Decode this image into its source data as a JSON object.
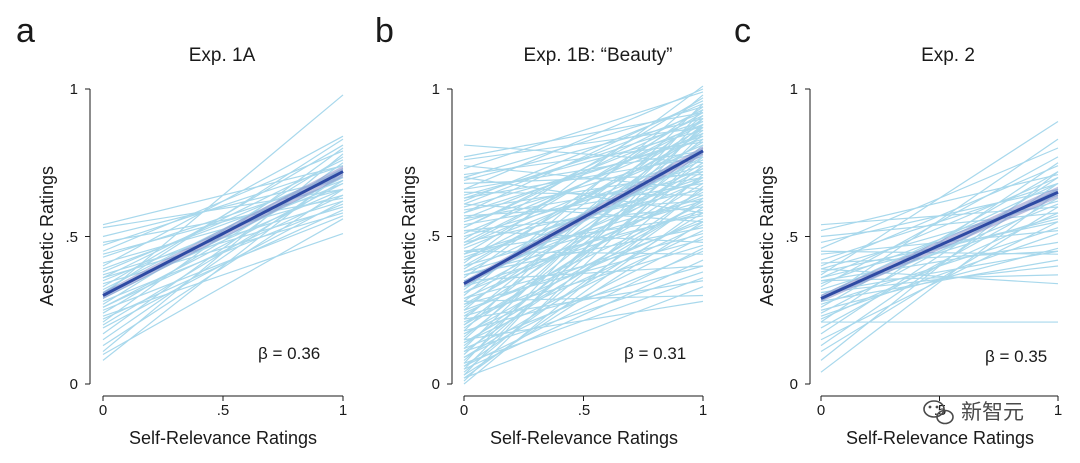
{
  "chart_data": [
    {
      "type": "line",
      "letter": "a",
      "title": "Exp. 1A",
      "xlabel": "Self-Relevance Ratings",
      "ylabel": "Aesthetic Ratings",
      "xlim": [
        0,
        1
      ],
      "ylim": [
        0,
        1
      ],
      "xticks": [
        0,
        0.5,
        1
      ],
      "xtick_labels": [
        "0",
        ".5",
        "1"
      ],
      "yticks": [
        0,
        0.5,
        1
      ],
      "ytick_labels": [
        "0",
        ".5",
        "1"
      ],
      "annotation": "β = 0.36",
      "fit": {
        "intercept": 0.3,
        "slope": 0.42,
        "ci": 0.012
      },
      "individual_lines": [
        [
          0.53,
          0.66
        ],
        [
          0.54,
          0.74
        ],
        [
          0.5,
          0.7
        ],
        [
          0.47,
          0.74
        ],
        [
          0.45,
          0.79
        ],
        [
          0.43,
          0.7
        ],
        [
          0.41,
          0.64
        ],
        [
          0.4,
          0.84
        ],
        [
          0.38,
          0.72
        ],
        [
          0.37,
          0.62
        ],
        [
          0.36,
          0.76
        ],
        [
          0.35,
          0.68
        ],
        [
          0.34,
          0.58
        ],
        [
          0.33,
          0.81
        ],
        [
          0.32,
          0.73
        ],
        [
          0.31,
          0.66
        ],
        [
          0.3,
          0.98
        ],
        [
          0.29,
          0.7
        ],
        [
          0.28,
          0.61
        ],
        [
          0.27,
          0.77
        ],
        [
          0.26,
          0.68
        ],
        [
          0.25,
          0.57
        ],
        [
          0.24,
          0.73
        ],
        [
          0.23,
          0.51
        ],
        [
          0.21,
          0.8
        ],
        [
          0.2,
          0.69
        ],
        [
          0.19,
          0.62
        ],
        [
          0.17,
          0.75
        ],
        [
          0.15,
          0.71
        ],
        [
          0.13,
          0.66
        ],
        [
          0.11,
          0.78
        ],
        [
          0.1,
          0.56
        ],
        [
          0.08,
          0.72
        ],
        [
          0.36,
          0.6
        ],
        [
          0.44,
          0.66
        ],
        [
          0.31,
          0.83
        ],
        [
          0.26,
          0.64
        ],
        [
          0.22,
          0.59
        ],
        [
          0.48,
          0.63
        ],
        [
          0.39,
          0.69
        ]
      ]
    },
    {
      "type": "line",
      "letter": "b",
      "title": "Exp. 1B: “Beauty”",
      "xlabel": "Self-Relevance Ratings",
      "ylabel": "Aesthetic Ratings",
      "xlim": [
        0,
        1
      ],
      "ylim": [
        0,
        1
      ],
      "xticks": [
        0,
        0.5,
        1
      ],
      "xtick_labels": [
        "0",
        ".5",
        "1"
      ],
      "yticks": [
        0,
        0.5,
        1
      ],
      "ytick_labels": [
        "0",
        ".5",
        "1"
      ],
      "annotation": "β = 0.31",
      "fit": {
        "intercept": 0.34,
        "slope": 0.45,
        "ci": 0.01
      },
      "individual_lines": [
        [
          0.81,
          0.75
        ],
        [
          0.77,
          0.92
        ],
        [
          0.74,
          0.66
        ],
        [
          0.73,
          0.99
        ],
        [
          0.71,
          0.82
        ],
        [
          0.7,
          0.58
        ],
        [
          0.69,
          0.9
        ],
        [
          0.68,
          0.71
        ],
        [
          0.66,
          1.0
        ],
        [
          0.65,
          0.64
        ],
        [
          0.64,
          0.86
        ],
        [
          0.63,
          0.77
        ],
        [
          0.62,
          0.95
        ],
        [
          0.61,
          0.55
        ],
        [
          0.6,
          0.83
        ],
        [
          0.59,
          0.72
        ],
        [
          0.58,
          0.96
        ],
        [
          0.57,
          0.62
        ],
        [
          0.56,
          0.88
        ],
        [
          0.55,
          0.79
        ],
        [
          0.54,
          0.68
        ],
        [
          0.53,
          0.93
        ],
        [
          0.52,
          0.6
        ],
        [
          0.51,
          0.85
        ],
        [
          0.5,
          0.74
        ],
        [
          0.49,
          0.97
        ],
        [
          0.48,
          0.66
        ],
        [
          0.47,
          0.89
        ],
        [
          0.46,
          0.78
        ],
        [
          0.45,
          0.57
        ],
        [
          0.44,
          0.92
        ],
        [
          0.43,
          0.7
        ],
        [
          0.42,
          0.84
        ],
        [
          0.41,
          1.01
        ],
        [
          0.4,
          0.63
        ],
        [
          0.39,
          0.87
        ],
        [
          0.38,
          0.76
        ],
        [
          0.37,
          0.53
        ],
        [
          0.36,
          0.94
        ],
        [
          0.35,
          0.69
        ],
        [
          0.34,
          0.82
        ],
        [
          0.33,
          0.59
        ],
        [
          0.32,
          0.9
        ],
        [
          0.31,
          0.73
        ],
        [
          0.3,
          0.98
        ],
        [
          0.29,
          0.65
        ],
        [
          0.28,
          0.86
        ],
        [
          0.27,
          0.49
        ],
        [
          0.26,
          0.8
        ],
        [
          0.25,
          0.91
        ],
        [
          0.24,
          0.61
        ],
        [
          0.23,
          0.75
        ],
        [
          0.22,
          0.88
        ],
        [
          0.21,
          0.56
        ],
        [
          0.2,
          0.83
        ],
        [
          0.19,
          0.7
        ],
        [
          0.18,
          0.95
        ],
        [
          0.17,
          0.62
        ],
        [
          0.16,
          0.79
        ],
        [
          0.15,
          0.87
        ],
        [
          0.14,
          0.52
        ],
        [
          0.13,
          0.74
        ],
        [
          0.12,
          0.9
        ],
        [
          0.11,
          0.66
        ],
        [
          0.1,
          0.81
        ],
        [
          0.09,
          0.58
        ],
        [
          0.08,
          0.77
        ],
        [
          0.07,
          0.93
        ],
        [
          0.06,
          0.63
        ],
        [
          0.05,
          0.85
        ],
        [
          0.04,
          0.71
        ],
        [
          0.03,
          0.88
        ],
        [
          0.02,
          0.6
        ],
        [
          0.01,
          0.79
        ],
        [
          0.0,
          0.67
        ],
        [
          0.35,
          0.4
        ],
        [
          0.28,
          0.3
        ],
        [
          0.45,
          0.44
        ],
        [
          0.22,
          0.35
        ],
        [
          0.15,
          0.28
        ],
        [
          0.52,
          0.48
        ],
        [
          0.18,
          0.4
        ],
        [
          0.38,
          0.62
        ],
        [
          0.42,
          0.73
        ],
        [
          0.25,
          0.55
        ],
        [
          0.31,
          0.64
        ],
        [
          0.47,
          0.81
        ],
        [
          0.56,
          0.7
        ],
        [
          0.61,
          0.92
        ],
        [
          0.66,
          0.79
        ],
        [
          0.12,
          0.45
        ],
        [
          0.09,
          0.5
        ],
        [
          0.05,
          0.42
        ],
        [
          0.03,
          0.55
        ],
        [
          0.07,
          0.36
        ],
        [
          0.14,
          0.62
        ],
        [
          0.2,
          0.68
        ],
        [
          0.27,
          0.72
        ],
        [
          0.33,
          0.77
        ],
        [
          0.4,
          0.85
        ],
        [
          0.48,
          0.88
        ],
        [
          0.53,
          0.91
        ],
        [
          0.58,
          0.84
        ],
        [
          0.63,
          0.89
        ],
        [
          0.7,
          0.94
        ],
        [
          0.76,
          0.87
        ],
        [
          0.44,
          0.69
        ],
        [
          0.37,
          0.58
        ],
        [
          0.29,
          0.51
        ],
        [
          0.23,
          0.47
        ],
        [
          0.17,
          0.54
        ],
        [
          0.11,
          0.38
        ],
        [
          0.06,
          0.46
        ],
        [
          0.02,
          0.33
        ]
      ]
    },
    {
      "type": "line",
      "letter": "c",
      "title": "Exp. 2",
      "xlabel": "Self-Relevance Ratings",
      "ylabel": "Aesthetic Ratings",
      "xlim": [
        0,
        1
      ],
      "ylim": [
        0,
        1
      ],
      "xticks": [
        0,
        0.5,
        1
      ],
      "xtick_labels": [
        "0",
        ".5",
        "1"
      ],
      "yticks": [
        0,
        0.5,
        1
      ],
      "ytick_labels": [
        "0",
        ".5",
        "1"
      ],
      "annotation": "β = 0.35",
      "fit": {
        "intercept": 0.29,
        "slope": 0.36,
        "ci": 0.012
      },
      "individual_lines": [
        [
          0.54,
          0.6
        ],
        [
          0.52,
          0.71
        ],
        [
          0.5,
          0.58
        ],
        [
          0.48,
          0.66
        ],
        [
          0.46,
          0.8
        ],
        [
          0.44,
          0.52
        ],
        [
          0.42,
          0.68
        ],
        [
          0.41,
          0.45
        ],
        [
          0.4,
          0.74
        ],
        [
          0.39,
          0.62
        ],
        [
          0.38,
          0.55
        ],
        [
          0.37,
          0.89
        ],
        [
          0.36,
          0.7
        ],
        [
          0.35,
          0.48
        ],
        [
          0.34,
          0.64
        ],
        [
          0.33,
          0.77
        ],
        [
          0.32,
          0.57
        ],
        [
          0.31,
          0.4
        ],
        [
          0.3,
          0.68
        ],
        [
          0.29,
          0.61
        ],
        [
          0.28,
          0.83
        ],
        [
          0.27,
          0.53
        ],
        [
          0.26,
          0.72
        ],
        [
          0.25,
          0.46
        ],
        [
          0.24,
          0.66
        ],
        [
          0.22,
          0.58
        ],
        [
          0.21,
          0.75
        ],
        [
          0.21,
          0.21
        ],
        [
          0.19,
          0.63
        ],
        [
          0.17,
          0.7
        ],
        [
          0.15,
          0.55
        ],
        [
          0.13,
          0.68
        ],
        [
          0.11,
          0.6
        ],
        [
          0.08,
          0.72
        ],
        [
          0.04,
          0.65
        ],
        [
          0.39,
          0.34
        ],
        [
          0.35,
          0.37
        ],
        [
          0.31,
          0.45
        ],
        [
          0.28,
          0.42
        ],
        [
          0.23,
          0.51
        ],
        [
          0.45,
          0.44
        ],
        [
          0.36,
          0.56
        ]
      ]
    }
  ],
  "watermark": {
    "text": "新智元",
    "icon": "wechat-icon"
  }
}
